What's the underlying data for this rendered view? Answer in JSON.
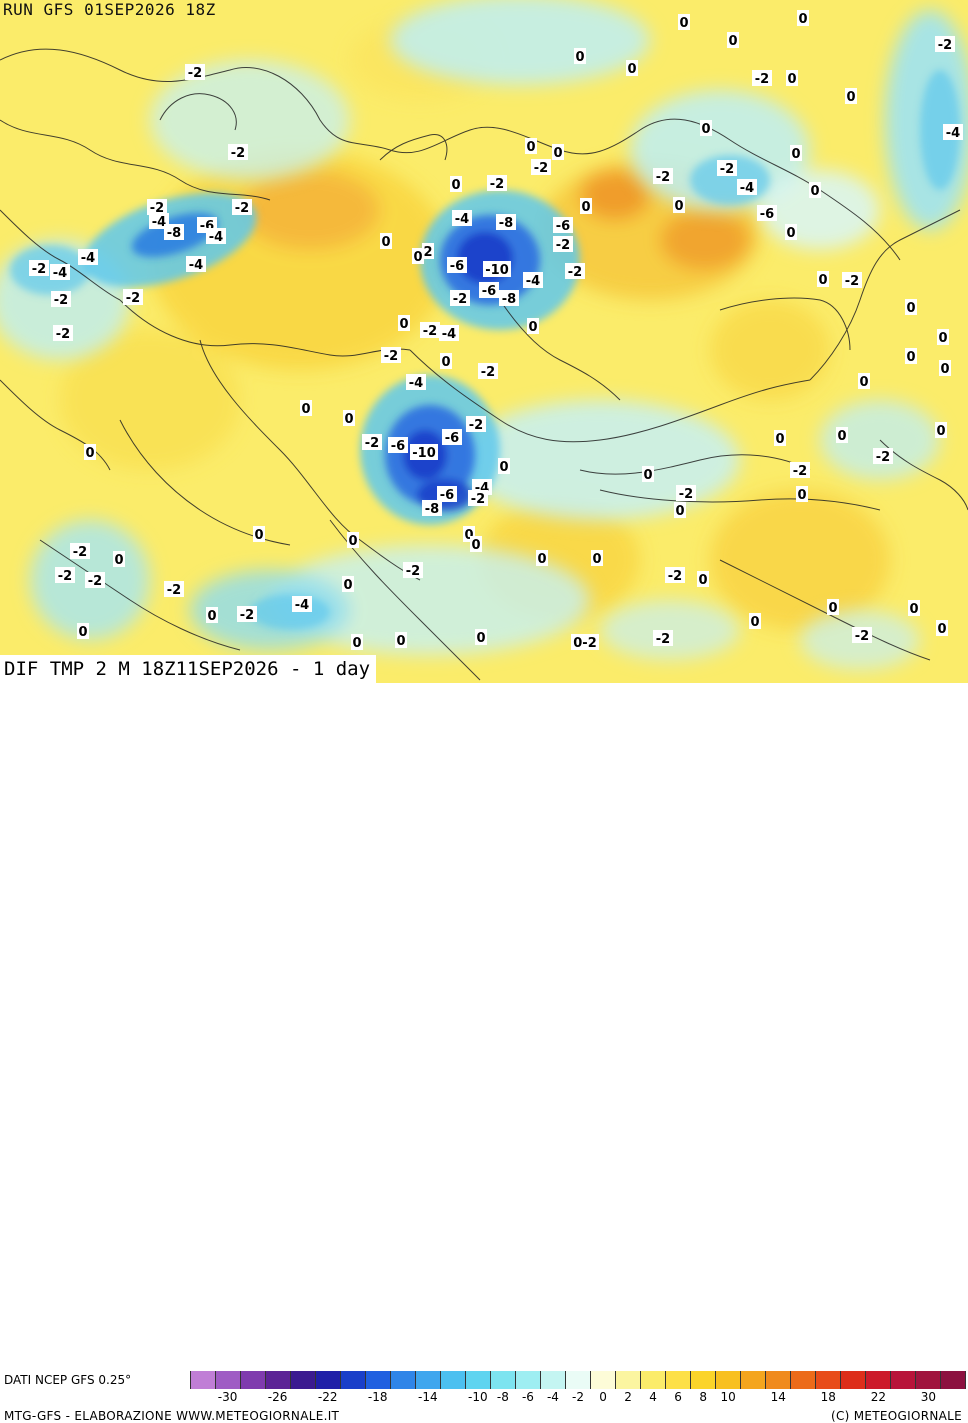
{
  "header": {
    "run_title": "RUN GFS 01SEP2026 18Z"
  },
  "map": {
    "title": "DIF TMP 2 M 18Z11SEP2026 - 1 day",
    "colors": {
      "warm_base": "#fbec6a",
      "warm_mid": "#f6c83c",
      "warm_hot": "#ef9a2a",
      "cold_light": "#bdeef5",
      "cold_mid": "#5fc8ec",
      "cold_deep": "#2d7fe0",
      "cold_core": "#1233b8",
      "border": "#222222"
    },
    "contour_labels": [
      {
        "text": "0",
        "pos": [
          684,
          22
        ]
      },
      {
        "text": "0",
        "pos": [
          803,
          18
        ]
      },
      {
        "text": "0",
        "pos": [
          733,
          40
        ]
      },
      {
        "text": "-2",
        "pos": [
          945,
          44
        ]
      },
      {
        "text": "-2",
        "pos": [
          195,
          72
        ]
      },
      {
        "text": "0",
        "pos": [
          580,
          56
        ]
      },
      {
        "text": "0",
        "pos": [
          632,
          68
        ]
      },
      {
        "text": "-2",
        "pos": [
          762,
          78
        ]
      },
      {
        "text": "0",
        "pos": [
          792,
          78
        ]
      },
      {
        "text": "0",
        "pos": [
          851,
          96
        ]
      },
      {
        "text": "0",
        "pos": [
          706,
          128
        ]
      },
      {
        "text": "-4",
        "pos": [
          953,
          132
        ]
      },
      {
        "text": "-2",
        "pos": [
          238,
          152
        ]
      },
      {
        "text": "0",
        "pos": [
          531,
          146
        ]
      },
      {
        "text": "0",
        "pos": [
          558,
          152
        ]
      },
      {
        "text": "-2",
        "pos": [
          541,
          167
        ]
      },
      {
        "text": "0",
        "pos": [
          796,
          153
        ]
      },
      {
        "text": "-2",
        "pos": [
          727,
          168
        ]
      },
      {
        "text": "-2",
        "pos": [
          663,
          176
        ]
      },
      {
        "text": "0",
        "pos": [
          456,
          184
        ]
      },
      {
        "text": "-2",
        "pos": [
          497,
          183
        ]
      },
      {
        "text": "-4",
        "pos": [
          747,
          187
        ]
      },
      {
        "text": "0",
        "pos": [
          815,
          190
        ]
      },
      {
        "text": "-2",
        "pos": [
          157,
          207
        ]
      },
      {
        "text": "-2",
        "pos": [
          242,
          207
        ]
      },
      {
        "text": "0",
        "pos": [
          586,
          206
        ]
      },
      {
        "text": "0",
        "pos": [
          679,
          205
        ]
      },
      {
        "text": "-6",
        "pos": [
          767,
          213
        ]
      },
      {
        "text": "-4",
        "pos": [
          159,
          221
        ]
      },
      {
        "text": "-6",
        "pos": [
          207,
          225
        ]
      },
      {
        "text": "-8",
        "pos": [
          174,
          232
        ]
      },
      {
        "text": "-4",
        "pos": [
          216,
          236
        ]
      },
      {
        "text": "-4",
        "pos": [
          462,
          218
        ]
      },
      {
        "text": "-8",
        "pos": [
          506,
          222
        ]
      },
      {
        "text": "-6",
        "pos": [
          563,
          225
        ]
      },
      {
        "text": "0",
        "pos": [
          791,
          232
        ]
      },
      {
        "text": "0",
        "pos": [
          386,
          241
        ]
      },
      {
        "text": "-2",
        "pos": [
          563,
          244
        ]
      },
      {
        "text": "0",
        "pos": [
          418,
          256
        ]
      },
      {
        "text": "2",
        "pos": [
          428,
          251
        ]
      },
      {
        "text": "-4",
        "pos": [
          88,
          257
        ]
      },
      {
        "text": "-4",
        "pos": [
          196,
          264
        ]
      },
      {
        "text": "-6",
        "pos": [
          457,
          265
        ]
      },
      {
        "text": "-10",
        "pos": [
          497,
          269
        ]
      },
      {
        "text": "-2",
        "pos": [
          575,
          271
        ]
      },
      {
        "text": "-2",
        "pos": [
          39,
          268
        ]
      },
      {
        "text": "-4",
        "pos": [
          60,
          272
        ]
      },
      {
        "text": "-4",
        "pos": [
          533,
          280
        ]
      },
      {
        "text": "0",
        "pos": [
          823,
          279
        ]
      },
      {
        "text": "-2",
        "pos": [
          852,
          280
        ]
      },
      {
        "text": "-6",
        "pos": [
          489,
          290
        ]
      },
      {
        "text": "-8",
        "pos": [
          509,
          298
        ]
      },
      {
        "text": "-2",
        "pos": [
          460,
          298
        ]
      },
      {
        "text": "-2",
        "pos": [
          133,
          297
        ]
      },
      {
        "text": "-2",
        "pos": [
          61,
          299
        ]
      },
      {
        "text": "0",
        "pos": [
          911,
          307
        ]
      },
      {
        "text": "0",
        "pos": [
          404,
          323
        ]
      },
      {
        "text": "-2",
        "pos": [
          430,
          330
        ]
      },
      {
        "text": "-4",
        "pos": [
          449,
          333
        ]
      },
      {
        "text": "0",
        "pos": [
          533,
          326
        ]
      },
      {
        "text": "-2",
        "pos": [
          63,
          333
        ]
      },
      {
        "text": "0",
        "pos": [
          943,
          337
        ]
      },
      {
        "text": "-2",
        "pos": [
          391,
          355
        ]
      },
      {
        "text": "0",
        "pos": [
          446,
          361
        ]
      },
      {
        "text": "0",
        "pos": [
          911,
          356
        ]
      },
      {
        "text": "-2",
        "pos": [
          488,
          371
        ]
      },
      {
        "text": "0",
        "pos": [
          945,
          368
        ]
      },
      {
        "text": "-4",
        "pos": [
          416,
          382
        ]
      },
      {
        "text": "0",
        "pos": [
          864,
          381
        ]
      },
      {
        "text": "0",
        "pos": [
          306,
          408
        ]
      },
      {
        "text": "0",
        "pos": [
          349,
          418
        ]
      },
      {
        "text": "-2",
        "pos": [
          476,
          424
        ]
      },
      {
        "text": "-6",
        "pos": [
          452,
          437
        ]
      },
      {
        "text": "-2",
        "pos": [
          372,
          442
        ]
      },
      {
        "text": "-6",
        "pos": [
          398,
          445
        ]
      },
      {
        "text": "0",
        "pos": [
          780,
          438
        ]
      },
      {
        "text": "0",
        "pos": [
          842,
          435
        ]
      },
      {
        "text": "0",
        "pos": [
          941,
          430
        ]
      },
      {
        "text": "-10",
        "pos": [
          424,
          452
        ]
      },
      {
        "text": "-2",
        "pos": [
          883,
          456
        ]
      },
      {
        "text": "0",
        "pos": [
          90,
          452
        ]
      },
      {
        "text": "0",
        "pos": [
          504,
          466
        ]
      },
      {
        "text": "0",
        "pos": [
          648,
          474
        ]
      },
      {
        "text": "-2",
        "pos": [
          800,
          470
        ]
      },
      {
        "text": "-4",
        "pos": [
          482,
          487
        ]
      },
      {
        "text": "-2",
        "pos": [
          686,
          493
        ]
      },
      {
        "text": "0",
        "pos": [
          802,
          494
        ]
      },
      {
        "text": "-6",
        "pos": [
          447,
          494
        ]
      },
      {
        "text": "-2",
        "pos": [
          478,
          498
        ]
      },
      {
        "text": "-8",
        "pos": [
          432,
          508
        ]
      },
      {
        "text": "0",
        "pos": [
          680,
          510
        ]
      },
      {
        "text": "0",
        "pos": [
          259,
          534
        ]
      },
      {
        "text": "0",
        "pos": [
          469,
          534
        ]
      },
      {
        "text": "0",
        "pos": [
          353,
          540
        ]
      },
      {
        "text": "0",
        "pos": [
          476,
          544
        ]
      },
      {
        "text": "-2",
        "pos": [
          80,
          551
        ]
      },
      {
        "text": "0",
        "pos": [
          119,
          559
        ]
      },
      {
        "text": "0",
        "pos": [
          542,
          558
        ]
      },
      {
        "text": "0",
        "pos": [
          597,
          558
        ]
      },
      {
        "text": "-2",
        "pos": [
          413,
          570
        ]
      },
      {
        "text": "-2",
        "pos": [
          65,
          575
        ]
      },
      {
        "text": "-2",
        "pos": [
          95,
          580
        ]
      },
      {
        "text": "-2",
        "pos": [
          675,
          575
        ]
      },
      {
        "text": "0",
        "pos": [
          703,
          579
        ]
      },
      {
        "text": "0",
        "pos": [
          348,
          584
        ]
      },
      {
        "text": "-2",
        "pos": [
          174,
          589
        ]
      },
      {
        "text": "-4",
        "pos": [
          302,
          604
        ]
      },
      {
        "text": "0",
        "pos": [
          833,
          607
        ]
      },
      {
        "text": "0",
        "pos": [
          914,
          608
        ]
      },
      {
        "text": "-2",
        "pos": [
          247,
          614
        ]
      },
      {
        "text": "0",
        "pos": [
          212,
          615
        ]
      },
      {
        "text": "0",
        "pos": [
          755,
          621
        ]
      },
      {
        "text": "0",
        "pos": [
          942,
          628
        ]
      },
      {
        "text": "0",
        "pos": [
          83,
          631
        ]
      },
      {
        "text": "-2",
        "pos": [
          862,
          635
        ]
      },
      {
        "text": "0",
        "pos": [
          481,
          637
        ]
      },
      {
        "text": "-2",
        "pos": [
          663,
          638
        ]
      },
      {
        "text": "0",
        "pos": [
          357,
          642
        ]
      },
      {
        "text": "0",
        "pos": [
          401,
          640
        ]
      },
      {
        "text": "0-2",
        "pos": [
          585,
          642
        ]
      }
    ]
  },
  "legend": {
    "data_source": "DATI NCEP GFS 0.25°",
    "colors": [
      "#c07ed6",
      "#9f5cc4",
      "#7f3bae",
      "#5c2396",
      "#3b1b90",
      "#2020a8",
      "#1a3fc9",
      "#2060e0",
      "#2f85e8",
      "#3fa6ee",
      "#4cc0f0",
      "#5fd4f0",
      "#7de4f0",
      "#9eeef2",
      "#c4f5f2",
      "#eafcf6",
      "#fdfcd8",
      "#fbf5a0",
      "#fbec6a",
      "#fde047",
      "#fbd42a",
      "#f8c020",
      "#f4a51e",
      "#f08a1c",
      "#ec6b1a",
      "#e84d1a",
      "#dd2e1a",
      "#cc1a2a",
      "#b8143a",
      "#a0143e",
      "#8c1240"
    ],
    "ticks": [
      "-30",
      "-26",
      "-22",
      "-18",
      "-14",
      "-10",
      "-8",
      "-6",
      "-4",
      "-2",
      "0",
      "2",
      "4",
      "6",
      "8",
      "10",
      "14",
      "18",
      "22",
      "30"
    ]
  },
  "footer": {
    "credit_left": "MTG-GFS - ELABORAZIONE WWW.METEOGIORNALE.IT",
    "credit_right": "(C) METEOGIORNALE"
  }
}
